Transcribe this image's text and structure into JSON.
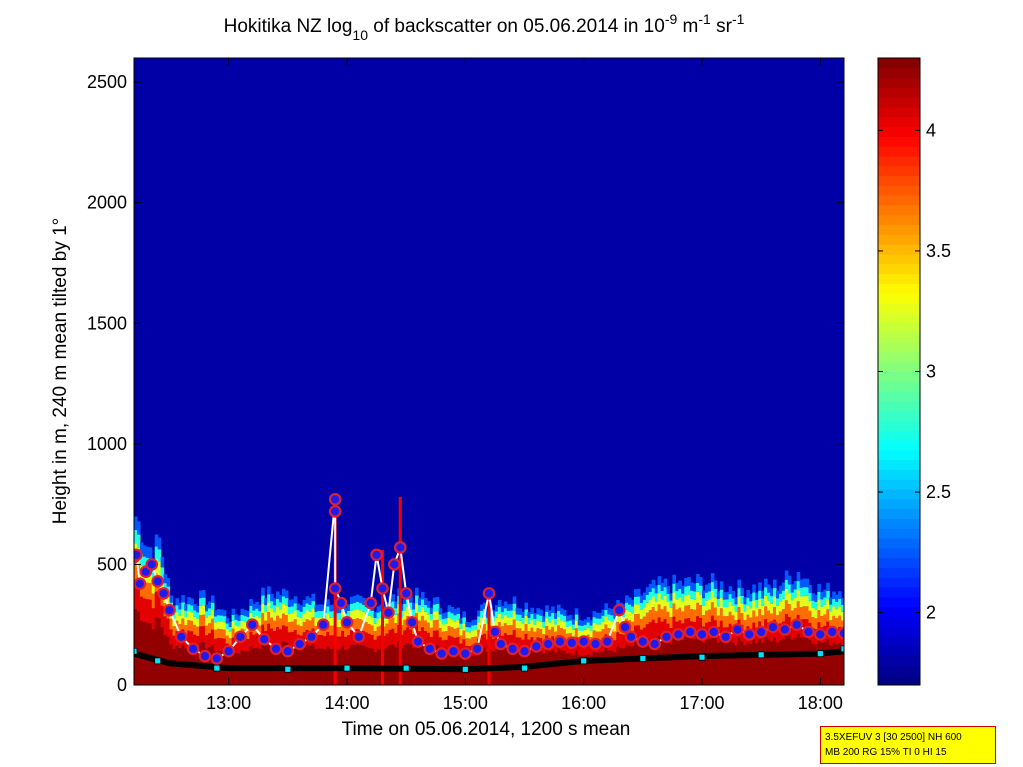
{
  "chart_data": {
    "type": "heatmap",
    "title": {
      "prefix": "Hokitika NZ log",
      "sub": "10",
      "middle": " of backscatter on 05.06.2014 in 10",
      "sup1": "-9",
      "unit1": " m",
      "sup2": "-1",
      "unit2": " sr",
      "sup3": "-1"
    },
    "xlabel": "Time on 05.06.2014, 1200 s mean",
    "ylabel": "Height in m, 240 m mean tilted by 1°",
    "x_range_hours": [
      12.2,
      18.2
    ],
    "ylim": [
      0,
      2600
    ],
    "x_ticks": [
      {
        "label": "13:00",
        "value": 13
      },
      {
        "label": "14:00",
        "value": 14
      },
      {
        "label": "15:00",
        "value": 15
      },
      {
        "label": "16:00",
        "value": 16
      },
      {
        "label": "17:00",
        "value": 17
      },
      {
        "label": "18:00",
        "value": 18
      }
    ],
    "y_ticks": [
      0,
      500,
      1000,
      1500,
      2000,
      2500
    ],
    "colorbar": {
      "range": [
        1.7,
        4.3
      ],
      "ticks": [
        {
          "label": "2",
          "value": 2
        },
        {
          "label": "2.5",
          "value": 2.5
        },
        {
          "label": "3",
          "value": 3
        },
        {
          "label": "3.5",
          "value": 3.5
        },
        {
          "label": "4",
          "value": 4
        }
      ],
      "colormap": "jet"
    },
    "background_value": 1.8,
    "aerosol_layer_top": [
      [
        12.2,
        700
      ],
      [
        12.25,
        640
      ],
      [
        12.3,
        580
      ],
      [
        12.35,
        560
      ],
      [
        12.4,
        600
      ],
      [
        12.5,
        360
      ],
      [
        12.8,
        360
      ],
      [
        13.0,
        280
      ],
      [
        13.3,
        380
      ],
      [
        13.5,
        380
      ],
      [
        13.8,
        330
      ],
      [
        14.0,
        350
      ],
      [
        14.2,
        330
      ],
      [
        14.5,
        380
      ],
      [
        14.8,
        330
      ],
      [
        15.0,
        280
      ],
      [
        15.3,
        360
      ],
      [
        15.6,
        320
      ],
      [
        16.0,
        290
      ],
      [
        16.3,
        330
      ],
      [
        16.6,
        410
      ],
      [
        17.0,
        430
      ],
      [
        17.3,
        400
      ],
      [
        17.6,
        410
      ],
      [
        17.8,
        470
      ],
      [
        18.0,
        390
      ],
      [
        18.2,
        400
      ]
    ],
    "spikes": [
      {
        "x": 13.9,
        "top": 780
      },
      {
        "x": 14.45,
        "top": 780
      },
      {
        "x": 14.3,
        "top": 560
      },
      {
        "x": 15.2,
        "top": 380
      }
    ],
    "layer_points_blue": [
      [
        12.2,
        530
      ],
      [
        12.22,
        540
      ],
      [
        12.25,
        420
      ],
      [
        12.3,
        470
      ],
      [
        12.35,
        500
      ],
      [
        12.4,
        430
      ],
      [
        12.45,
        380
      ],
      [
        12.5,
        310
      ],
      [
        12.6,
        200
      ],
      [
        12.7,
        150
      ],
      [
        12.8,
        120
      ],
      [
        12.9,
        110
      ],
      [
        13.0,
        140
      ],
      [
        13.1,
        200
      ],
      [
        13.2,
        250
      ],
      [
        13.3,
        190
      ],
      [
        13.4,
        150
      ],
      [
        13.5,
        140
      ],
      [
        13.6,
        170
      ],
      [
        13.7,
        200
      ],
      [
        13.8,
        250
      ],
      [
        13.9,
        770
      ],
      [
        13.9,
        720
      ],
      [
        13.9,
        400
      ],
      [
        13.95,
        340
      ],
      [
        14.0,
        260
      ],
      [
        14.1,
        200
      ],
      [
        14.2,
        340
      ],
      [
        14.25,
        540
      ],
      [
        14.3,
        400
      ],
      [
        14.35,
        300
      ],
      [
        14.4,
        500
      ],
      [
        14.45,
        570
      ],
      [
        14.5,
        380
      ],
      [
        14.55,
        260
      ],
      [
        14.6,
        180
      ],
      [
        14.7,
        150
      ],
      [
        14.8,
        130
      ],
      [
        14.9,
        140
      ],
      [
        15.0,
        130
      ],
      [
        15.1,
        150
      ],
      [
        15.2,
        380
      ],
      [
        15.25,
        220
      ],
      [
        15.3,
        170
      ],
      [
        15.4,
        150
      ],
      [
        15.5,
        140
      ],
      [
        15.6,
        160
      ],
      [
        15.7,
        170
      ],
      [
        15.8,
        180
      ],
      [
        15.9,
        175
      ],
      [
        16.0,
        180
      ],
      [
        16.1,
        170
      ],
      [
        16.2,
        180
      ],
      [
        16.3,
        310
      ],
      [
        16.35,
        240
      ],
      [
        16.4,
        200
      ],
      [
        16.5,
        180
      ],
      [
        16.6,
        170
      ],
      [
        16.7,
        200
      ],
      [
        16.8,
        210
      ],
      [
        16.9,
        220
      ],
      [
        17.0,
        210
      ],
      [
        17.1,
        220
      ],
      [
        17.2,
        200
      ],
      [
        17.3,
        230
      ],
      [
        17.4,
        210
      ],
      [
        17.5,
        220
      ],
      [
        17.6,
        240
      ],
      [
        17.7,
        230
      ],
      [
        17.8,
        250
      ],
      [
        17.9,
        220
      ],
      [
        18.0,
        210
      ],
      [
        18.1,
        220
      ],
      [
        18.2,
        215
      ]
    ],
    "cloud_base_line": [
      [
        12.2,
        130
      ],
      [
        12.5,
        90
      ],
      [
        13.0,
        70
      ],
      [
        14.0,
        70
      ],
      [
        15.0,
        65
      ],
      [
        15.5,
        75
      ],
      [
        16.0,
        100
      ],
      [
        16.5,
        110
      ],
      [
        17.0,
        120
      ],
      [
        17.5,
        125
      ],
      [
        18.0,
        130
      ],
      [
        18.2,
        140
      ]
    ],
    "cyan_markers": [
      [
        12.2,
        140
      ],
      [
        12.4,
        100
      ],
      [
        12.9,
        70
      ],
      [
        13.5,
        65
      ],
      [
        14.0,
        70
      ],
      [
        14.5,
        70
      ],
      [
        15.0,
        65
      ],
      [
        15.5,
        70
      ],
      [
        16.0,
        100
      ],
      [
        16.5,
        110
      ],
      [
        17.0,
        115
      ],
      [
        17.5,
        125
      ],
      [
        18.0,
        130
      ],
      [
        18.2,
        150
      ]
    ],
    "colors": {
      "outline": "#ffffff",
      "points_fill": "#1c1cf0",
      "points_ring": "#e0202e",
      "cloud_base": "#000000",
      "cyan": "#00e0ff"
    }
  },
  "info_box": {
    "line1": "3.5XEFUV 3 [30 2500] NH 600",
    "line2": "MB 200 RG 15% TI 0 HI 15"
  }
}
